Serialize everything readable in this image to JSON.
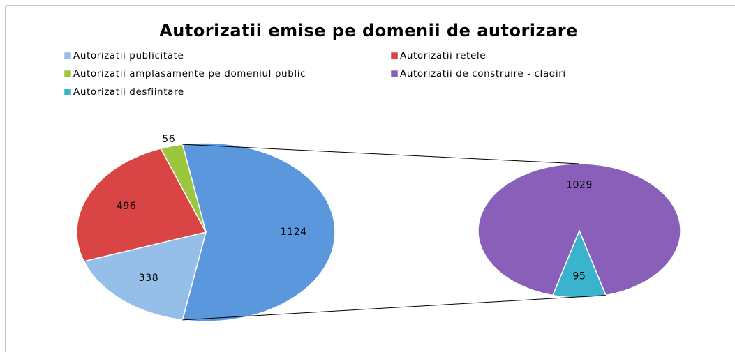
{
  "chart_data": {
    "type": "pie-of-pie",
    "title": "Autorizatii emise pe domenii de autorizare",
    "categories": [
      "Autorizatii publicitate",
      "Autorizatii retele",
      "Autorizatii amplasamente pe domeniul public",
      "Autorizatii de construire - cladiri",
      "Autorizatii desfiintare"
    ],
    "values": [
      338,
      496,
      56,
      1029,
      95
    ],
    "colors": [
      "#95bfe8",
      "#d94444",
      "#9cc63e",
      "#8a5fba",
      "#3cb3cd"
    ],
    "secondary": [
      3,
      4
    ],
    "other": {
      "value": 1124,
      "color": "#5b97dd"
    }
  }
}
